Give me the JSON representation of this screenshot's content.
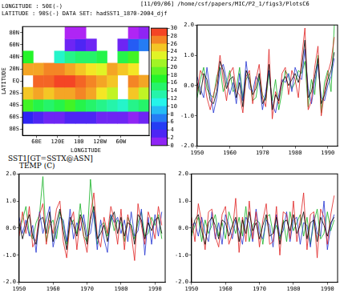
{
  "chart_data": [
    {
      "type": "heatmap",
      "title": "SST1[GT=SSTX@ASN]",
      "subtitle": "TEMP (C)",
      "annotations": [
        "[11/09/06] /home/csf/papers/MIC/P2_1/figs3/PlotsC6",
        "LONGITUDE : 50E(-)",
        "LATITUDE : 90S(-)   DATA SET: hadSST1_1870-2004_djf"
      ],
      "xlabel": "LONGITUDE",
      "ylabel": "LATITUDE",
      "x": [
        35,
        65,
        95,
        125,
        155,
        185,
        215,
        245,
        275,
        305,
        335,
        365
      ],
      "y": [
        -80,
        -60,
        -40,
        -20,
        0,
        20,
        40,
        60,
        80
      ],
      "cells": [
        [
          null,
          null,
          null,
          null,
          null,
          null,
          null,
          null,
          null,
          null,
          null,
          null
        ],
        [
          4,
          3,
          2,
          2,
          3,
          3,
          3,
          2,
          2,
          2,
          1,
          2
        ],
        [
          18,
          16,
          15,
          16,
          18,
          16,
          15,
          14,
          13,
          12,
          14,
          15
        ],
        [
          25,
          26,
          25,
          26,
          26,
          27,
          26,
          24,
          22,
          null,
          25,
          22
        ],
        [
          null,
          28,
          28,
          29,
          29,
          28,
          27,
          26,
          25,
          null,
          27,
          26
        ],
        [
          26,
          26,
          27,
          27,
          26,
          25,
          24,
          23,
          26,
          25,
          24,
          null
        ],
        [
          17,
          null,
          null,
          12,
          14,
          15,
          15,
          16,
          null,
          16,
          18,
          null
        ],
        [
          null,
          null,
          null,
          null,
          2,
          3,
          2,
          null,
          null,
          2,
          6,
          7
        ],
        [
          null,
          null,
          null,
          null,
          0,
          0,
          null,
          null,
          null,
          null,
          0,
          1
        ]
      ],
      "xlim": [
        20,
        380
      ],
      "ylim": [
        -90,
        90
      ],
      "xticks": [
        {
          "value": 60,
          "label": "60E"
        },
        {
          "value": 120,
          "label": "120E"
        },
        180,
        {
          "value": 240,
          "label": "120W"
        },
        {
          "value": 300,
          "label": "60W"
        }
      ],
      "yticks": [
        {
          "value": -80,
          "label": "80S"
        },
        {
          "value": -60,
          "label": "60S"
        },
        {
          "value": -40,
          "label": "40S"
        },
        {
          "value": -20,
          "label": "20S"
        },
        {
          "value": 0,
          "label": "EQ"
        },
        {
          "value": 20,
          "label": "20N"
        },
        {
          "value": 40,
          "label": "40N"
        },
        {
          "value": 60,
          "label": "60N"
        },
        {
          "value": 80,
          "label": "80N"
        }
      ],
      "colorbar": {
        "range": [
          0,
          30
        ],
        "ticks": [
          0,
          2,
          4,
          6,
          8,
          10,
          12,
          14,
          16,
          18,
          20,
          22,
          24,
          26,
          28,
          30
        ]
      }
    },
    {
      "type": "line",
      "x": [
        1950,
        1951,
        1952,
        1953,
        1954,
        1955,
        1956,
        1957,
        1958,
        1959,
        1960,
        1961,
        1962,
        1963,
        1964,
        1965,
        1966,
        1967,
        1968,
        1969,
        1970,
        1971,
        1972,
        1973,
        1974,
        1975,
        1976,
        1977,
        1978,
        1979,
        1980,
        1981,
        1982,
        1983,
        1984,
        1985,
        1986,
        1987,
        1988,
        1989,
        1990,
        1991,
        1992
      ],
      "xlim": [
        1950,
        1993
      ],
      "xticks": [
        1950,
        1960,
        1970,
        1980,
        1990
      ],
      "ylim": [
        -2,
        2
      ],
      "yticks": [
        {
          "value": -2,
          "label": "-2.0"
        },
        {
          "value": -1,
          "label": "-1.0"
        },
        {
          "value": 0,
          "label": "0.0"
        },
        {
          "value": 1,
          "label": "1.0"
        },
        {
          "value": 2,
          "label": "2.0"
        }
      ],
      "grid": false,
      "series": [
        {
          "color": "#000000",
          "values": [
            0.1,
            -0.3,
            0.4,
            0.2,
            -0.5,
            -0.6,
            -0.2,
            0.8,
            0.5,
            -0.1,
            0.2,
            0.3,
            -0.4,
            0.1,
            -0.7,
            0.5,
            0.2,
            -0.3,
            -0.1,
            0.4,
            -0.6,
            -0.4,
            0.7,
            -0.8,
            -0.3,
            -0.5,
            0.1,
            0.3,
            0.0,
            0.2,
            0.4,
            0.1,
            0.6,
            1.5,
            -0.4,
            -0.2,
            0.3,
            0.9,
            -0.6,
            -0.3,
            0.2,
            0.5,
            1.1
          ]
        },
        {
          "color": "#e02020",
          "values": [
            -0.2,
            0.5,
            0.3,
            -0.4,
            -0.8,
            -0.3,
            0.1,
            1.0,
            0.2,
            -0.5,
            0.4,
            0.6,
            -0.2,
            -0.3,
            -0.9,
            0.3,
            0.5,
            -0.6,
            0.2,
            0.7,
            -0.4,
            -0.7,
            1.2,
            -1.1,
            -0.2,
            -0.6,
            0.4,
            0.6,
            -0.3,
            0.5,
            0.2,
            -0.4,
            0.9,
            1.9,
            -0.8,
            -0.5,
            0.6,
            1.3,
            -1.0,
            -0.2,
            0.4,
            0.8,
            1.6
          ]
        },
        {
          "color": "#2030d0",
          "values": [
            0.3,
            -0.1,
            -0.4,
            0.6,
            -0.2,
            -0.9,
            -0.4,
            0.5,
            0.7,
            0.2,
            -0.3,
            0.1,
            -0.6,
            0.4,
            -0.5,
            0.8,
            -0.1,
            -0.2,
            0.3,
            0.1,
            -0.8,
            -0.2,
            0.5,
            -0.6,
            -0.9,
            -0.3,
            0.2,
            0.1,
            0.4,
            -0.2,
            0.6,
            0.3,
            0.2,
            1.2,
            -0.1,
            -0.6,
            0.1,
            0.7,
            -0.4,
            -0.5,
            0.0,
            0.3,
            0.9
          ]
        },
        {
          "color": "#10b020",
          "values": [
            -0.4,
            0.2,
            0.6,
            -0.1,
            -0.3,
            -0.4,
            0.3,
            0.6,
            -0.2,
            0.1,
            0.5,
            -0.2,
            -0.1,
            0.6,
            -0.4,
            0.2,
            0.4,
            -0.5,
            -0.4,
            0.3,
            -0.3,
            -0.5,
            0.4,
            -0.5,
            0.2,
            -0.8,
            -0.2,
            0.5,
            0.3,
            -0.1,
            0.1,
            0.5,
            0.4,
            0.8,
            -0.7,
            0.2,
            -0.3,
            1.0,
            -0.9,
            0.1,
            0.5,
            -0.2,
            2.0
          ]
        }
      ]
    },
    {
      "type": "line",
      "x": [
        1950,
        1951,
        1952,
        1953,
        1954,
        1955,
        1956,
        1957,
        1958,
        1959,
        1960,
        1961,
        1962,
        1963,
        1964,
        1965,
        1966,
        1967,
        1968,
        1969,
        1970,
        1971,
        1972,
        1973,
        1974,
        1975,
        1976,
        1977,
        1978,
        1979,
        1980,
        1981,
        1982,
        1983,
        1984,
        1985,
        1986,
        1987,
        1988,
        1989,
        1990,
        1991,
        1992
      ],
      "xlim": [
        1950,
        1993
      ],
      "xticks": [
        1950,
        1960,
        1970,
        1980,
        1990
      ],
      "ylim": [
        -2,
        2
      ],
      "yticks": [
        {
          "value": -2,
          "label": "-2.0"
        },
        {
          "value": -1,
          "label": "-1.0"
        },
        {
          "value": 0,
          "label": "0.0"
        },
        {
          "value": 1,
          "label": "1.0"
        },
        {
          "value": 2,
          "label": "2.0"
        }
      ],
      "grid": false,
      "series": [
        {
          "color": "#000000",
          "values": [
            0.2,
            -0.4,
            0.1,
            0.5,
            -0.3,
            -0.6,
            0.3,
            0.4,
            -0.2,
            0.6,
            -0.5,
            0.2,
            0.7,
            -0.1,
            -0.8,
            0.4,
            0.1,
            -0.3,
            0.5,
            0.2,
            -0.6,
            0.3,
            0.8,
            -0.4,
            -0.2,
            0.1,
            -0.5,
            0.3,
            0.6,
            -0.2,
            0.4,
            -0.3,
            0.2,
            0.1,
            -0.6,
            0.5,
            0.3,
            -0.4,
            0.2,
            -0.1,
            0.3,
            0.4,
            -0.2
          ]
        },
        {
          "color": "#e02020",
          "values": [
            -0.3,
            0.6,
            -0.2,
            0.8,
            -0.7,
            -0.4,
            0.5,
            0.9,
            -0.6,
            0.3,
            -0.2,
            0.7,
            1.0,
            -0.5,
            -1.1,
            0.2,
            0.6,
            -0.8,
            0.4,
            -0.3,
            -0.9,
            0.5,
            1.3,
            -0.3,
            -0.7,
            0.4,
            -0.2,
            0.8,
            0.3,
            -0.6,
            0.7,
            -0.8,
            0.5,
            -0.2,
            -1.2,
            0.9,
            0.1,
            -0.6,
            0.6,
            0.2,
            -0.4,
            0.8,
            0.1
          ]
        },
        {
          "color": "#2030d0",
          "values": [
            0.4,
            -0.2,
            0.3,
            -0.3,
            0.1,
            -0.9,
            0.6,
            -0.2,
            0.3,
            0.8,
            -0.7,
            -0.1,
            0.4,
            0.3,
            -0.5,
            0.7,
            -0.4,
            0.2,
            -0.1,
            0.5,
            -0.3,
            -0.2,
            0.6,
            -0.8,
            0.3,
            -0.4,
            -0.9,
            0.5,
            0.2,
            0.4,
            -0.2,
            0.3,
            -0.5,
            0.6,
            -0.3,
            -0.1,
            0.7,
            -1.0,
            0.4,
            -0.6,
            0.5,
            -0.3,
            0.6
          ]
        },
        {
          "color": "#10b020",
          "values": [
            -0.1,
            0.3,
            0.8,
            -0.2,
            -0.4,
            0.2,
            0.5,
            1.9,
            -0.5,
            0.1,
            0.3,
            -0.4,
            0.6,
            0.2,
            -0.6,
            0.1,
            0.3,
            -0.2,
            0.9,
            -0.3,
            -0.5,
            1.8,
            0.4,
            -0.6,
            0.1,
            0.2,
            -0.3,
            0.5,
            -0.1,
            0.3,
            0.2,
            -0.5,
            0.4,
            0.1,
            -0.4,
            0.2,
            0.6,
            -0.3,
            -0.2,
            0.4,
            0.1,
            0.5,
            -0.4
          ]
        }
      ]
    },
    {
      "type": "line",
      "x": [
        1950,
        1951,
        1952,
        1953,
        1954,
        1955,
        1956,
        1957,
        1958,
        1959,
        1960,
        1961,
        1962,
        1963,
        1964,
        1965,
        1966,
        1967,
        1968,
        1969,
        1970,
        1971,
        1972,
        1973,
        1974,
        1975,
        1976,
        1977,
        1978,
        1979,
        1980,
        1981,
        1982,
        1983,
        1984,
        1985,
        1986,
        1987,
        1988,
        1989,
        1990,
        1991,
        1992
      ],
      "xlim": [
        1950,
        1993
      ],
      "xticks": [
        1950,
        1960,
        1970,
        1980,
        1990
      ],
      "ylim": [
        -2,
        2
      ],
      "yticks": [
        {
          "value": -2,
          "label": "-2.0"
        },
        {
          "value": -1,
          "label": "-1.0"
        },
        {
          "value": 0,
          "label": "0.0"
        },
        {
          "value": 1,
          "label": "1.0"
        },
        {
          "value": 2,
          "label": "2.0"
        }
      ],
      "grid": false,
      "series": [
        {
          "color": "#000000",
          "values": [
            -0.2,
            0.3,
            0.5,
            -0.1,
            -0.6,
            0.2,
            0.4,
            0.1,
            -0.4,
            0.3,
            0.2,
            -0.3,
            0.1,
            0.4,
            -0.5,
            0.3,
            -0.2,
            0.6,
            -0.1,
            0.2,
            -0.4,
            0.1,
            0.5,
            -0.3,
            -0.2,
            0.4,
            -0.6,
            0.2,
            0.3,
            -0.1,
            0.5,
            -0.2,
            0.1,
            0.6,
            -0.4,
            0.2,
            0.3,
            -0.5,
            0.4,
            0.1,
            -0.3,
            0.2,
            0.4
          ]
        },
        {
          "color": "#e02020",
          "values": [
            0.4,
            -0.5,
            0.9,
            0.2,
            -0.8,
            0.6,
            0.7,
            -0.3,
            -0.7,
            0.5,
            0.8,
            -0.6,
            -0.2,
            1.1,
            -0.9,
            0.4,
            -0.5,
            1.0,
            -0.4,
            0.6,
            -0.7,
            0.3,
            0.9,
            -0.6,
            -0.5,
            0.8,
            -1.0,
            0.6,
            0.5,
            -0.4,
            1.0,
            -0.5,
            0.3,
            1.3,
            -0.8,
            0.5,
            0.6,
            -1.1,
            0.7,
            0.4,
            -0.6,
            0.5,
            1.2
          ]
        },
        {
          "color": "#2030d0",
          "values": [
            0.1,
            0.2,
            -0.3,
            0.4,
            -0.2,
            -0.5,
            0.6,
            -0.4,
            0.2,
            -0.6,
            0.5,
            0.1,
            -0.4,
            0.3,
            -0.1,
            -0.6,
            0.4,
            0.2,
            -0.5,
            0.7,
            -0.2,
            -0.4,
            0.3,
            0.1,
            -0.7,
            0.5,
            -0.3,
            -0.1,
            0.6,
            -0.5,
            0.3,
            0.4,
            -0.6,
            0.2,
            0.1,
            -0.7,
            0.5,
            -0.2,
            -0.3,
            1.0,
            -0.8,
            0.1,
            0.5
          ]
        },
        {
          "color": "#10b020",
          "values": [
            -0.3,
            0.1,
            0.4,
            -0.5,
            0.3,
            -0.2,
            0.1,
            0.5,
            -0.3,
            0.2,
            -0.4,
            0.6,
            0.2,
            -0.2,
            0.4,
            -0.3,
            0.8,
            -0.5,
            0.1,
            0.3,
            0.2,
            -0.6,
            0.4,
            0.5,
            -0.2,
            0.1,
            -0.4,
            0.3,
            -0.5,
            0.6,
            -0.1,
            0.2,
            0.5,
            -0.3,
            0.4,
            -0.6,
            0.2,
            0.7,
            -0.4,
            -0.2,
            0.6,
            -0.1,
            0.3
          ]
        }
      ]
    }
  ]
}
